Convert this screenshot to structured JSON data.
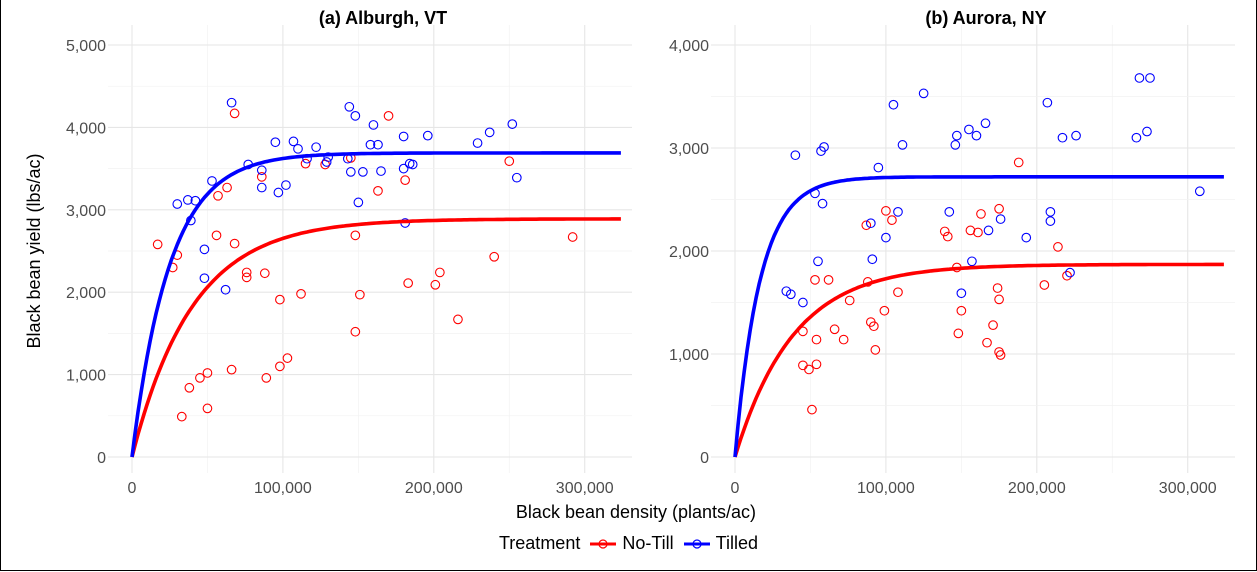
{
  "chart_data": [
    {
      "type": "scatter",
      "title": "(a) Alburgh, VT",
      "xlabel": "Black bean density (plants/ac)",
      "ylabel": "Black bean yield (lbs/ac)",
      "xlim": [
        0,
        330000
      ],
      "ylim": [
        0,
        5000
      ],
      "xticks": [
        "0",
        "100,000",
        "200,000",
        "300,000"
      ],
      "yticks": [
        "0",
        "1,000",
        "2,000",
        "3,000",
        "4,000",
        "5,000"
      ],
      "grid": true,
      "series": [
        {
          "name": "No-Till",
          "color": "#ff0000",
          "points": [
            [
              17000,
              2580
            ],
            [
              27000,
              2300
            ],
            [
              30000,
              2450
            ],
            [
              33000,
              490
            ],
            [
              38000,
              840
            ],
            [
              45000,
              960
            ],
            [
              50000,
              1020
            ],
            [
              50000,
              590
            ],
            [
              56000,
              2690
            ],
            [
              57000,
              3170
            ],
            [
              63000,
              3270
            ],
            [
              66000,
              1060
            ],
            [
              68000,
              4170
            ],
            [
              68000,
              2590
            ],
            [
              76000,
              2240
            ],
            [
              76000,
              2180
            ],
            [
              86000,
              3400
            ],
            [
              88000,
              2230
            ],
            [
              89000,
              960
            ],
            [
              98000,
              1910
            ],
            [
              98000,
              1100
            ],
            [
              103000,
              1200
            ],
            [
              112000,
              1980
            ],
            [
              115000,
              3560
            ],
            [
              128000,
              3550
            ],
            [
              145000,
              3630
            ],
            [
              148000,
              1520
            ],
            [
              148000,
              2690
            ],
            [
              151000,
              1970
            ],
            [
              163000,
              3230
            ],
            [
              170000,
              4140
            ],
            [
              181000,
              3360
            ],
            [
              183000,
              2110
            ],
            [
              201000,
              2090
            ],
            [
              204000,
              2240
            ],
            [
              216000,
              1670
            ],
            [
              240000,
              2430
            ],
            [
              250000,
              3590
            ],
            [
              292000,
              2670
            ]
          ],
          "curve": {
            "asymptote": 2890,
            "rate": 2.5e-05
          }
        },
        {
          "name": "Tilled",
          "color": "#0000ff",
          "points": [
            [
              30000,
              3070
            ],
            [
              37000,
              3120
            ],
            [
              39000,
              2870
            ],
            [
              42000,
              3110
            ],
            [
              48000,
              2170
            ],
            [
              48000,
              2520
            ],
            [
              53000,
              3350
            ],
            [
              62000,
              2030
            ],
            [
              66000,
              4300
            ],
            [
              77000,
              3550
            ],
            [
              86000,
              3270
            ],
            [
              86000,
              3480
            ],
            [
              95000,
              3820
            ],
            [
              97000,
              3210
            ],
            [
              102000,
              3300
            ],
            [
              107000,
              3830
            ],
            [
              110000,
              3740
            ],
            [
              116000,
              3620
            ],
            [
              122000,
              3760
            ],
            [
              129000,
              3580
            ],
            [
              130000,
              3640
            ],
            [
              143000,
              3620
            ],
            [
              144000,
              4250
            ],
            [
              145000,
              3460
            ],
            [
              148000,
              4140
            ],
            [
              150000,
              3090
            ],
            [
              153000,
              3460
            ],
            [
              158000,
              3790
            ],
            [
              160000,
              4030
            ],
            [
              163000,
              3790
            ],
            [
              165000,
              3470
            ],
            [
              180000,
              3500
            ],
            [
              180000,
              3890
            ],
            [
              181000,
              2840
            ],
            [
              184000,
              3560
            ],
            [
              186000,
              3550
            ],
            [
              196000,
              3900
            ],
            [
              229000,
              3810
            ],
            [
              237000,
              3940
            ],
            [
              252000,
              4040
            ],
            [
              255000,
              3390
            ]
          ],
          "curve": {
            "asymptote": 3690,
            "rate": 4e-05
          }
        }
      ]
    },
    {
      "type": "scatter",
      "title": "(b) Aurora, NY",
      "xlabel": "Black bean density (plants/ac)",
      "ylabel": "",
      "xlim": [
        0,
        330000
      ],
      "ylim": [
        0,
        4000
      ],
      "xticks": [
        "0",
        "100,000",
        "200,000",
        "300,000"
      ],
      "yticks": [
        "0",
        "1,000",
        "2,000",
        "3,000",
        "4,000"
      ],
      "grid": true,
      "series": [
        {
          "name": "No-Till",
          "color": "#ff0000",
          "points": [
            [
              45000,
              1220
            ],
            [
              45000,
              890
            ],
            [
              49000,
              850
            ],
            [
              51000,
              460
            ],
            [
              53000,
              1720
            ],
            [
              54000,
              1140
            ],
            [
              54000,
              900
            ],
            [
              62000,
              1720
            ],
            [
              66000,
              1240
            ],
            [
              72000,
              1140
            ],
            [
              76000,
              1520
            ],
            [
              87000,
              2250
            ],
            [
              88000,
              1700
            ],
            [
              90000,
              1310
            ],
            [
              92000,
              1270
            ],
            [
              93000,
              1040
            ],
            [
              99000,
              1420
            ],
            [
              100000,
              2390
            ],
            [
              104000,
              2300
            ],
            [
              108000,
              1600
            ],
            [
              139000,
              2190
            ],
            [
              141000,
              2140
            ],
            [
              147000,
              1840
            ],
            [
              148000,
              1200
            ],
            [
              150000,
              1420
            ],
            [
              156000,
              2200
            ],
            [
              161000,
              2180
            ],
            [
              163000,
              2360
            ],
            [
              167000,
              1110
            ],
            [
              171000,
              1280
            ],
            [
              174000,
              1640
            ],
            [
              175000,
              2410
            ],
            [
              175000,
              1530
            ],
            [
              175000,
              1020
            ],
            [
              176000,
              990
            ],
            [
              188000,
              2860
            ],
            [
              205000,
              1670
            ],
            [
              214000,
              2040
            ],
            [
              220000,
              1760
            ]
          ],
          "curve": {
            "asymptote": 1870,
            "rate": 2.6e-05
          }
        },
        {
          "name": "Tilled",
          "color": "#0000ff",
          "points": [
            [
              34000,
              1610
            ],
            [
              37000,
              1580
            ],
            [
              40000,
              2930
            ],
            [
              45000,
              1500
            ],
            [
              53000,
              2560
            ],
            [
              55000,
              1900
            ],
            [
              57000,
              2970
            ],
            [
              58000,
              2460
            ],
            [
              59000,
              3010
            ],
            [
              90000,
              2270
            ],
            [
              91000,
              1920
            ],
            [
              95000,
              2810
            ],
            [
              100000,
              2130
            ],
            [
              105000,
              3420
            ],
            [
              108000,
              2380
            ],
            [
              111000,
              3030
            ],
            [
              125000,
              3530
            ],
            [
              142000,
              2380
            ],
            [
              146000,
              3030
            ],
            [
              147000,
              3120
            ],
            [
              150000,
              1590
            ],
            [
              155000,
              3180
            ],
            [
              157000,
              1900
            ],
            [
              160000,
              3120
            ],
            [
              166000,
              3240
            ],
            [
              168000,
              2200
            ],
            [
              176000,
              2310
            ],
            [
              193000,
              2130
            ],
            [
              207000,
              3440
            ],
            [
              209000,
              2380
            ],
            [
              209000,
              2290
            ],
            [
              217000,
              3100
            ],
            [
              222000,
              1790
            ],
            [
              226000,
              3120
            ],
            [
              266000,
              3100
            ],
            [
              268000,
              3680
            ],
            [
              273000,
              3160
            ],
            [
              275000,
              3680
            ],
            [
              308000,
              2580
            ]
          ],
          "curve": {
            "asymptote": 2720,
            "rate": 6e-05
          }
        }
      ]
    }
  ],
  "legend": {
    "title": "Treatment",
    "items": [
      {
        "label": "No-Till",
        "color": "#ff0000"
      },
      {
        "label": "Tilled",
        "color": "#0000ff"
      }
    ]
  }
}
